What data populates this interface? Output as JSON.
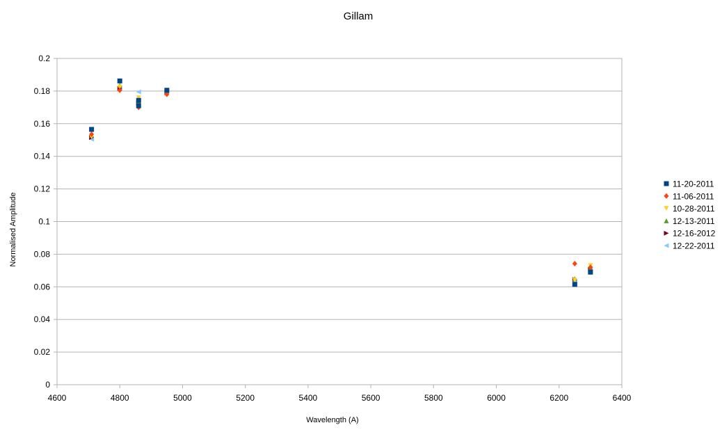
{
  "chart_data": {
    "type": "scatter",
    "title": "Gillam",
    "xlabel": "Wavelength (A)",
    "ylabel": "Normalised Amplitude",
    "xlim": [
      4600,
      6400
    ],
    "ylim": [
      0,
      0.2
    ],
    "x_ticks": [
      4600,
      4800,
      5000,
      5200,
      5400,
      5600,
      5800,
      6000,
      6200,
      6400
    ],
    "x_tick_labels": [
      "4600",
      "4800",
      "5000",
      "5200",
      "5400",
      "5600",
      "5800",
      "6000",
      "6200",
      "6400"
    ],
    "y_ticks": [
      0,
      0.02,
      0.04,
      0.06,
      0.08,
      0.1,
      0.12,
      0.14,
      0.16,
      0.18,
      0.2
    ],
    "y_tick_labels": [
      "0",
      "0.02",
      "0.04",
      "0.06",
      "0.08",
      "0.1",
      "0.12",
      "0.14",
      "0.16",
      "0.18",
      "0.2"
    ],
    "grid": "horizontal",
    "legend_position": "right",
    "series": [
      {
        "name": "11-20-2011",
        "marker": "square",
        "color": "#004586",
        "points": [
          {
            "x": 4710,
            "y": 0.1565
          },
          {
            "x": 4800,
            "y": 0.1862
          },
          {
            "x": 4860,
            "y": 0.1743
          },
          {
            "x": 4860,
            "y": 0.171
          },
          {
            "x": 4950,
            "y": 0.1805
          },
          {
            "x": 6250,
            "y": 0.0615
          },
          {
            "x": 6300,
            "y": 0.069
          }
        ]
      },
      {
        "name": "11-06-2011",
        "marker": "diamond",
        "color": "#FF420E",
        "points": [
          {
            "x": 4710,
            "y": 0.1535
          },
          {
            "x": 4800,
            "y": 0.1805
          },
          {
            "x": 4860,
            "y": 0.17
          },
          {
            "x": 4950,
            "y": 0.178
          },
          {
            "x": 6250,
            "y": 0.0742
          },
          {
            "x": 6300,
            "y": 0.072
          }
        ]
      },
      {
        "name": "10-28-2011",
        "marker": "triangle-down",
        "color": "#FFD320",
        "points": [
          {
            "x": 4710,
            "y": 0.152
          },
          {
            "x": 4800,
            "y": 0.1825
          },
          {
            "x": 4860,
            "y": 0.1758
          },
          {
            "x": 4950,
            "y": 0.1795
          },
          {
            "x": 6250,
            "y": 0.064
          },
          {
            "x": 6300,
            "y": 0.073
          }
        ]
      },
      {
        "name": "12-13-2011",
        "marker": "triangle-up",
        "color": "#579D1C",
        "points": [
          {
            "x": 4710,
            "y": 0.153
          },
          {
            "x": 4800,
            "y": 0.1835
          },
          {
            "x": 4860,
            "y": 0.1735
          },
          {
            "x": 4950,
            "y": 0.18
          },
          {
            "x": 6250,
            "y": 0.065
          },
          {
            "x": 6300,
            "y": 0.0715
          }
        ]
      },
      {
        "name": "12-16-2012",
        "marker": "triangle-right",
        "color": "#7E0021",
        "points": [
          {
            "x": 4710,
            "y": 0.1515
          },
          {
            "x": 4800,
            "y": 0.1815
          },
          {
            "x": 4860,
            "y": 0.1725
          },
          {
            "x": 4950,
            "y": 0.179
          },
          {
            "x": 6250,
            "y": 0.0645
          },
          {
            "x": 6300,
            "y": 0.0705
          }
        ]
      },
      {
        "name": "12-22-2011",
        "marker": "triangle-left",
        "color": "#83CAFF",
        "points": [
          {
            "x": 4710,
            "y": 0.1505
          },
          {
            "x": 4800,
            "y": 0.182
          },
          {
            "x": 4860,
            "y": 0.1795
          },
          {
            "x": 4950,
            "y": 0.1798
          },
          {
            "x": 6250,
            "y": 0.063
          },
          {
            "x": 6300,
            "y": 0.071
          }
        ]
      }
    ]
  }
}
